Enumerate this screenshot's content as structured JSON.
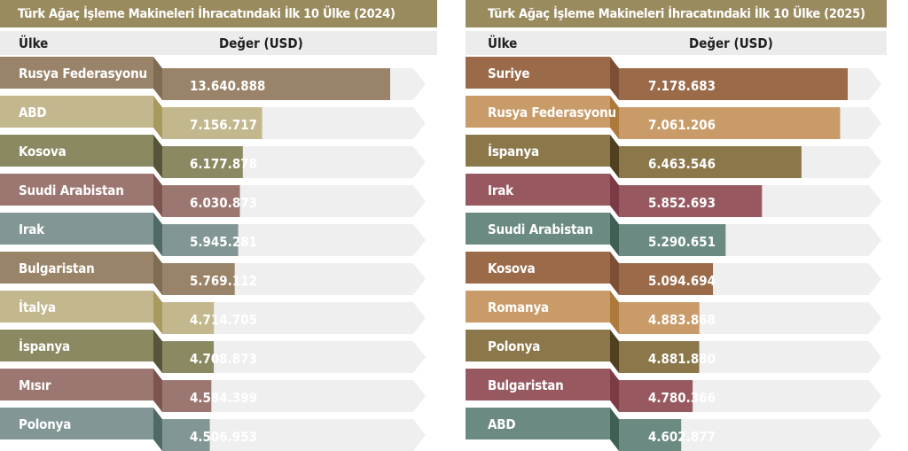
{
  "chart_data": [
    {
      "type": "bar",
      "orientation": "horizontal",
      "title": "Türk Ağaç İşleme Makineleri İhracatındaki İlk 10 Ülke (2024)",
      "xlabel": "Değer (USD)",
      "ylabel": "Ülke",
      "header": {
        "country": "Ülke",
        "value": "Değer (USD)"
      },
      "categories": [
        "Rusya Federasyonu",
        "ABD",
        "Kosova",
        "Suudi Arabistan",
        "Irak",
        "Bulgaristan",
        "İtalya",
        "İspanya",
        "Mısır",
        "Polonya"
      ],
      "values": [
        13640888,
        7156717,
        6177878,
        6030873,
        5945281,
        5769112,
        4714705,
        4708873,
        4584399,
        4506953
      ],
      "value_labels": [
        "13.640.888",
        "7.156.717",
        "6.177.878",
        "6.030.873",
        "5.945.281",
        "5.769.112",
        "4.714.705",
        "4.708.873",
        "4.584.399",
        "4.506.953"
      ],
      "colors": [
        "#9a8469",
        "#c3b78e",
        "#8b8962",
        "#9c7772",
        "#829696",
        "#9a8469",
        "#c3b78e",
        "#8b8962",
        "#9c7772",
        "#829696"
      ],
      "fold_colors": [
        "#7f6c53",
        "#a8995f",
        "#56553a",
        "#7d5450",
        "#4f6965",
        "#7f6c53",
        "#a8995f",
        "#56553a",
        "#7d5450",
        "#4f6965"
      ]
    },
    {
      "type": "bar",
      "orientation": "horizontal",
      "title": "Türk Ağaç İşleme Makineleri İhracatındaki İlk 10 Ülke (2025)",
      "xlabel": "Değer (USD)",
      "ylabel": "Ülke",
      "header": {
        "country": "Ülke",
        "value": "Değer (USD)"
      },
      "categories": [
        "Suriye",
        "Rusya Federasyonu",
        "İspanya",
        "Irak",
        "Suudi Arabistan",
        "Kosova",
        "Romanya",
        "Polonya",
        "Bulgaristan",
        "ABD"
      ],
      "values": [
        7178683,
        7061206,
        6463546,
        5852693,
        5290651,
        5094694,
        4883868,
        4881880,
        4780366,
        4602877
      ],
      "value_labels": [
        "7.178.683",
        "7.061.206",
        "6.463.546",
        "5.852.693",
        "5.290.651",
        "5.094.694",
        "4.883.868",
        "4.881.880",
        "4.780.366",
        "4.602.877"
      ],
      "colors": [
        "#9a6a49",
        "#c99b68",
        "#8b774a",
        "#97595f",
        "#6b8a82",
        "#9a6a49",
        "#c99b68",
        "#8b774a",
        "#97595f",
        "#6b8a82"
      ],
      "fold_colors": [
        "#7e4f35",
        "#ad7a3c",
        "#50401f",
        "#7c3b44",
        "#3f5f55",
        "#7e4f35",
        "#ad7a3c",
        "#50401f",
        "#7c3b44",
        "#3f5f55"
      ]
    }
  ],
  "track_color": "#efefef",
  "title_bar_color": "#9a8b5f"
}
